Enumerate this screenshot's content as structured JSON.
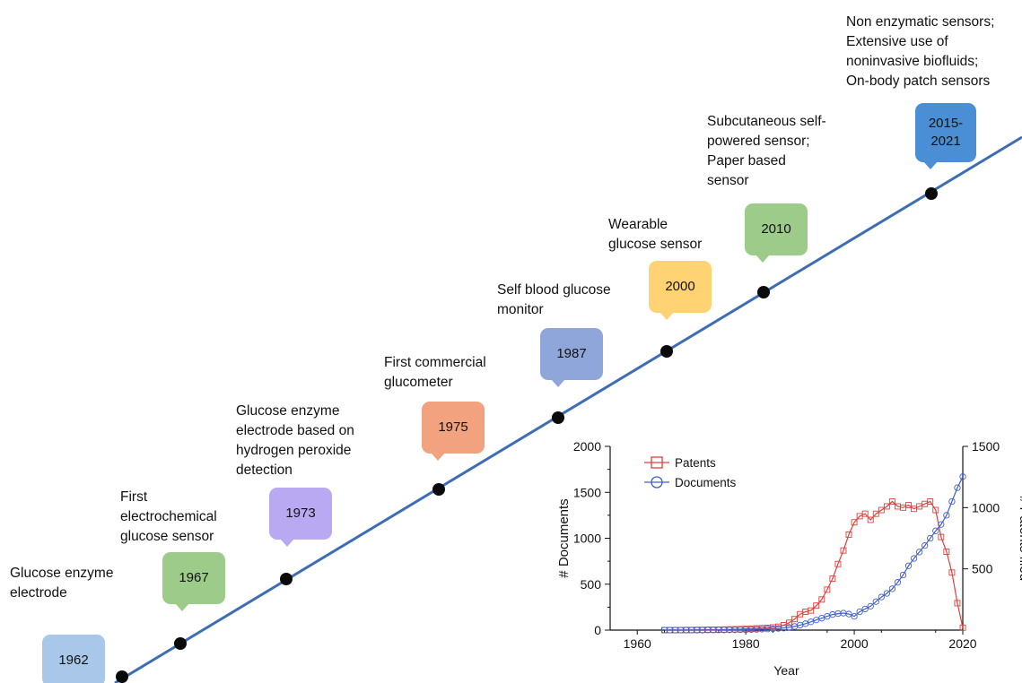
{
  "timeline": {
    "line_color": "#3d6db5",
    "milestones": [
      {
        "year": "1962",
        "label_lines": [
          "Glucose enzyme",
          "electrode"
        ],
        "color": "#a9c7e8"
      },
      {
        "year": "1967",
        "label_lines": [
          "First",
          "electrochemical",
          "glucose sensor"
        ],
        "color": "#9dcb8a"
      },
      {
        "year": "1973",
        "label_lines": [
          "Glucose enzyme",
          "electrode based on",
          "hydrogen peroxide",
          "detection"
        ],
        "color": "#b9a8f2"
      },
      {
        "year": "1975",
        "label_lines": [
          "First commercial",
          "glucometer"
        ],
        "color": "#f2a27e"
      },
      {
        "year": "1987",
        "label_lines": [
          "Self blood glucose",
          "monitor"
        ],
        "color": "#8fa6db"
      },
      {
        "year": "2000",
        "label_lines": [
          "Wearable",
          "glucose sensor"
        ],
        "color": "#ffd374"
      },
      {
        "year": "2010",
        "label_lines": [
          "Subcutaneous self-",
          "powered sensor;",
          "Paper based",
          "sensor"
        ],
        "color": "#9dcb8a"
      },
      {
        "year_lines": [
          "2015-",
          "2021"
        ],
        "label_lines": [
          "Non enzymatic sensors;",
          "Extensive use of",
          "noninvasive biofluids;",
          "On-body patch sensors"
        ],
        "color": "#4a8fd6"
      }
    ]
  },
  "chart_data": {
    "type": "line",
    "xlabel": "Year",
    "ylabel": "# Documents",
    "y2label": "# Patents filed",
    "xlim": [
      1955,
      2020
    ],
    "xticks": [
      1960,
      1980,
      2000,
      2020
    ],
    "ylim": [
      0,
      2000
    ],
    "yticks": [
      0,
      500,
      1000,
      1500,
      2000
    ],
    "y2lim": [
      0,
      1500
    ],
    "y2ticks": [
      500,
      1000,
      1500
    ],
    "legend_position": "top-left",
    "x": [
      1965,
      1966,
      1967,
      1968,
      1969,
      1970,
      1971,
      1972,
      1973,
      1974,
      1975,
      1976,
      1977,
      1978,
      1979,
      1980,
      1981,
      1982,
      1983,
      1984,
      1985,
      1986,
      1987,
      1988,
      1989,
      1990,
      1991,
      1992,
      1993,
      1994,
      1995,
      1996,
      1997,
      1998,
      1999,
      2000,
      2001,
      2002,
      2003,
      2004,
      2005,
      2006,
      2007,
      2008,
      2009,
      2010,
      2011,
      2012,
      2013,
      2014,
      2015,
      2016,
      2017,
      2018,
      2019,
      2020
    ],
    "series": [
      {
        "name": "Patents",
        "axis": "right",
        "color": "#e0403a",
        "marker": "square",
        "values": [
          0,
          0,
          0,
          0,
          1,
          1,
          2,
          2,
          3,
          3,
          4,
          5,
          6,
          7,
          8,
          10,
          12,
          14,
          16,
          18,
          22,
          28,
          40,
          60,
          90,
          130,
          150,
          160,
          200,
          250,
          330,
          420,
          540,
          650,
          780,
          880,
          930,
          950,
          900,
          950,
          980,
          1010,
          1050,
          1010,
          1000,
          1020,
          990,
          1010,
          1030,
          1050,
          980,
          760,
          640,
          470,
          220,
          20
        ]
      },
      {
        "name": "Documents",
        "axis": "left",
        "color": "#3f5fd0",
        "marker": "circle",
        "values": [
          0,
          0,
          0,
          0,
          0,
          0,
          0,
          0,
          1,
          1,
          2,
          2,
          3,
          3,
          4,
          5,
          6,
          8,
          10,
          12,
          14,
          18,
          22,
          30,
          40,
          55,
          70,
          90,
          110,
          130,
          150,
          170,
          180,
          185,
          175,
          150,
          200,
          230,
          260,
          310,
          360,
          400,
          450,
          520,
          600,
          700,
          780,
          850,
          920,
          1000,
          1080,
          1150,
          1250,
          1400,
          1550,
          1670
        ]
      }
    ]
  }
}
